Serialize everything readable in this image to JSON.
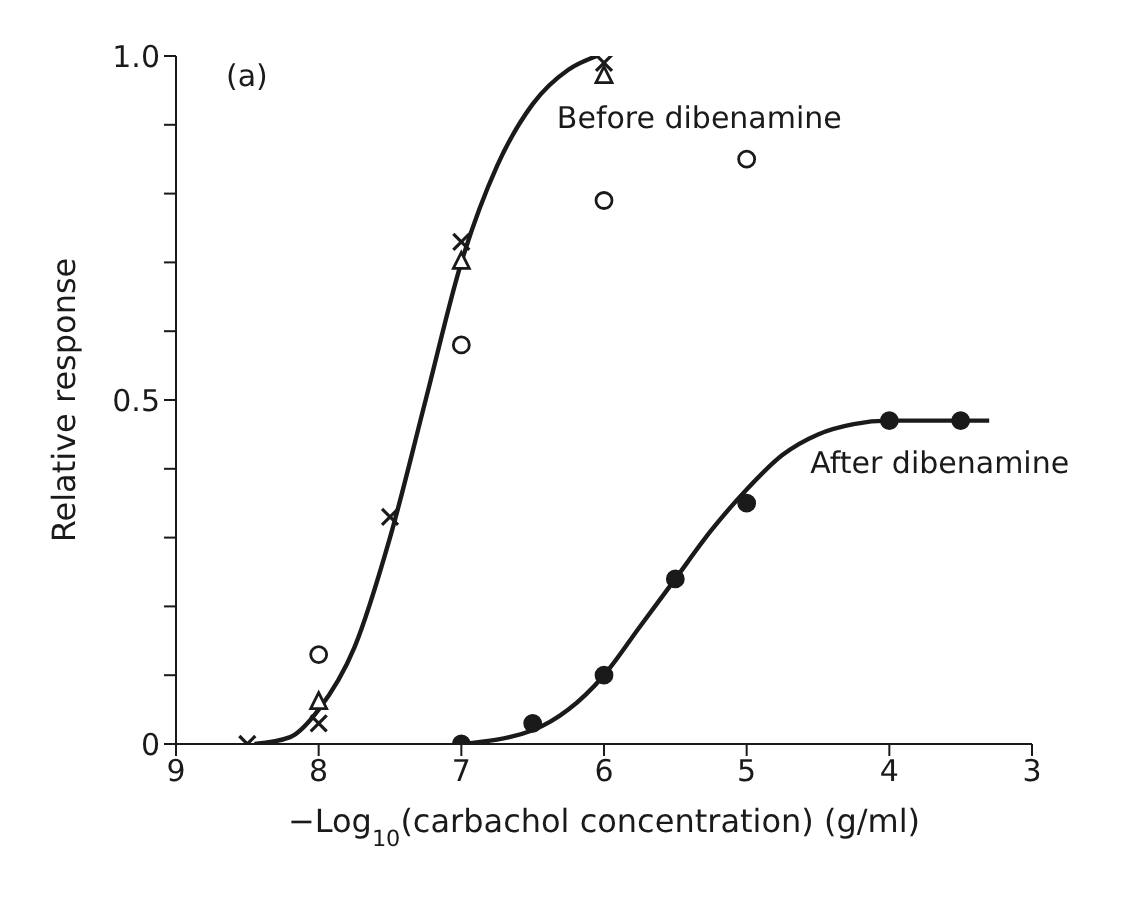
{
  "chart_data": {
    "type": "scatter",
    "title": "(a)",
    "xlabel": "−Log$_{10}$(carbachol concentration) (g/ml)",
    "ylabel": "Relative response",
    "xlim": [
      9,
      3
    ],
    "xticks": [
      9,
      8,
      7,
      6,
      5,
      4,
      3
    ],
    "ylim": [
      0,
      1
    ],
    "yticks": [
      0,
      {
        "value": 0.1,
        "label": null
      },
      {
        "value": 0.2,
        "label": null
      },
      {
        "value": 0.3,
        "label": null
      },
      {
        "value": 0.4,
        "label": null
      },
      {
        "value": 0.5,
        "label": "0.5"
      },
      {
        "value": 0.6,
        "label": null
      },
      {
        "value": 0.7,
        "label": null
      },
      {
        "value": 0.8,
        "label": null
      },
      {
        "value": 0.9,
        "label": null
      },
      {
        "value": 1,
        "label": "1.0"
      }
    ],
    "series": [
      {
        "type": "line",
        "name": "Before dibenamine",
        "color": "#1a1a1a",
        "marker": "none",
        "line_style": "solid",
        "x": [
          8.45,
          8.2,
          8,
          7.75,
          7.5,
          7.25,
          7,
          6.75,
          6.5,
          6.25,
          6.05
        ],
        "values": [
          0,
          0.01,
          0.05,
          0.14,
          0.3,
          0.5,
          0.7,
          0.84,
          0.93,
          0.98,
          1
        ]
      },
      {
        "type": "line",
        "name": "After dibenamine",
        "color": "#1a1a1a",
        "marker": "none",
        "line_style": "solid",
        "x": [
          7,
          6.5,
          6.25,
          6,
          5.75,
          5.5,
          5.25,
          5,
          4.75,
          4.5,
          4.25,
          4,
          3.5,
          3.3
        ],
        "values": [
          0,
          0.02,
          0.05,
          0.1,
          0.17,
          0.24,
          0.31,
          0.37,
          0.42,
          0.45,
          0.465,
          0.47,
          0.47,
          0.47
        ]
      },
      {
        "color": "#1a1a1a",
        "marker": "cross",
        "x": [
          8.5,
          8,
          7.5,
          7,
          6
        ],
        "values": [
          0,
          0.03,
          0.33,
          0.73,
          0.99
        ]
      },
      {
        "color": "#ffffff",
        "marker": "triangle",
        "x": [
          8,
          7,
          6
        ],
        "values": [
          0.06,
          0.7,
          0.97
        ]
      },
      {
        "color": "#ffffff",
        "marker": "circle",
        "x": [
          8,
          7,
          6,
          5
        ],
        "values": [
          0.13,
          0.58,
          0.79,
          0.85
        ]
      },
      {
        "color": "#1a1a1a",
        "marker": "circle",
        "x": [
          7,
          6.5,
          6,
          5.5,
          5,
          4,
          3.5
        ],
        "values": [
          0,
          0.03,
          0.1,
          0.24,
          0.35,
          0.47,
          0.47
        ]
      }
    ]
  }
}
